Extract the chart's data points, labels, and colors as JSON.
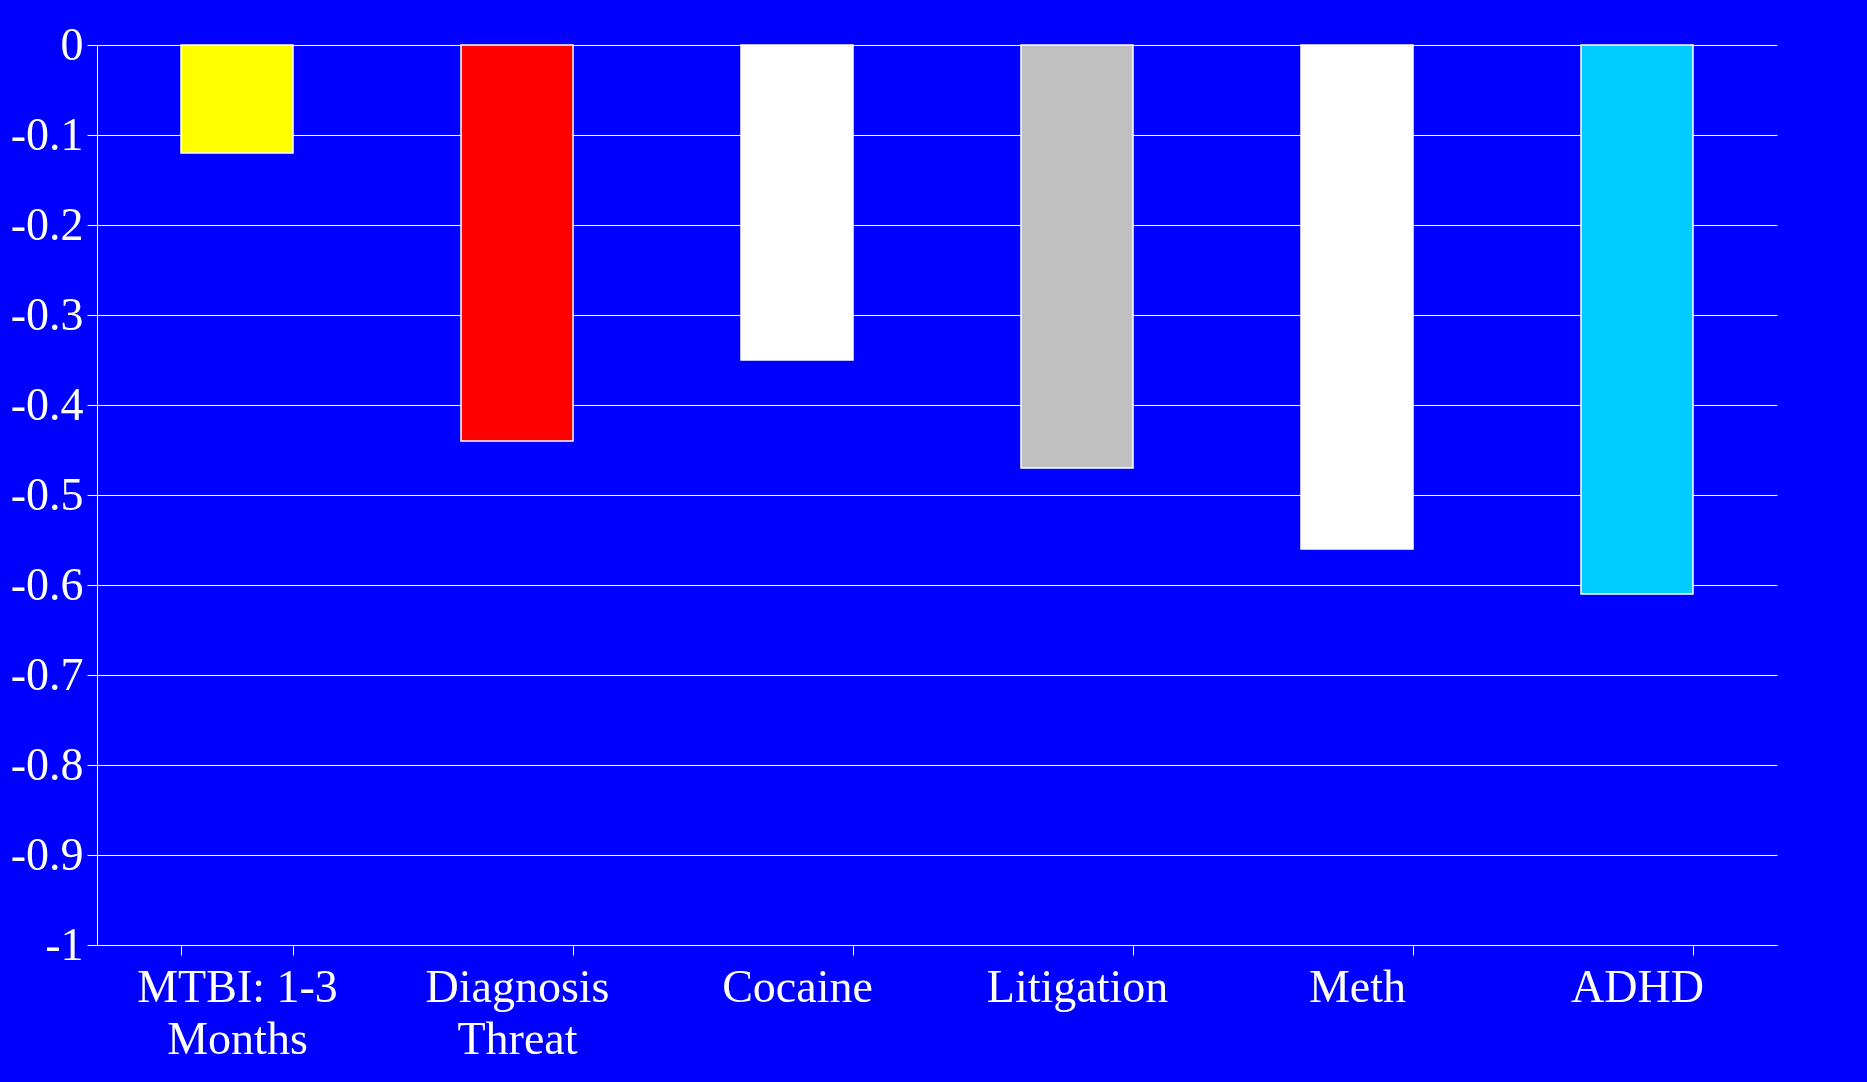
{
  "chart_data": {
    "type": "bar",
    "categories": [
      "MTBI: 1-3 Months",
      "Diagnosis Threat",
      "Cocaine",
      "Litigation",
      "Meth",
      "ADHD"
    ],
    "values": [
      -0.12,
      -0.44,
      -0.35,
      -0.47,
      -0.56,
      -0.61
    ],
    "colors": [
      "#ffff00",
      "#ff0000",
      "#ffffff",
      "#c0c0c0",
      "#ffffff",
      "#00ccff"
    ],
    "ylim": [
      -1,
      0
    ],
    "yticks": [
      0,
      -0.1,
      -0.2,
      -0.3,
      -0.4,
      -0.5,
      -0.6,
      -0.7,
      -0.8,
      -0.9,
      -1
    ],
    "grid": "y"
  }
}
